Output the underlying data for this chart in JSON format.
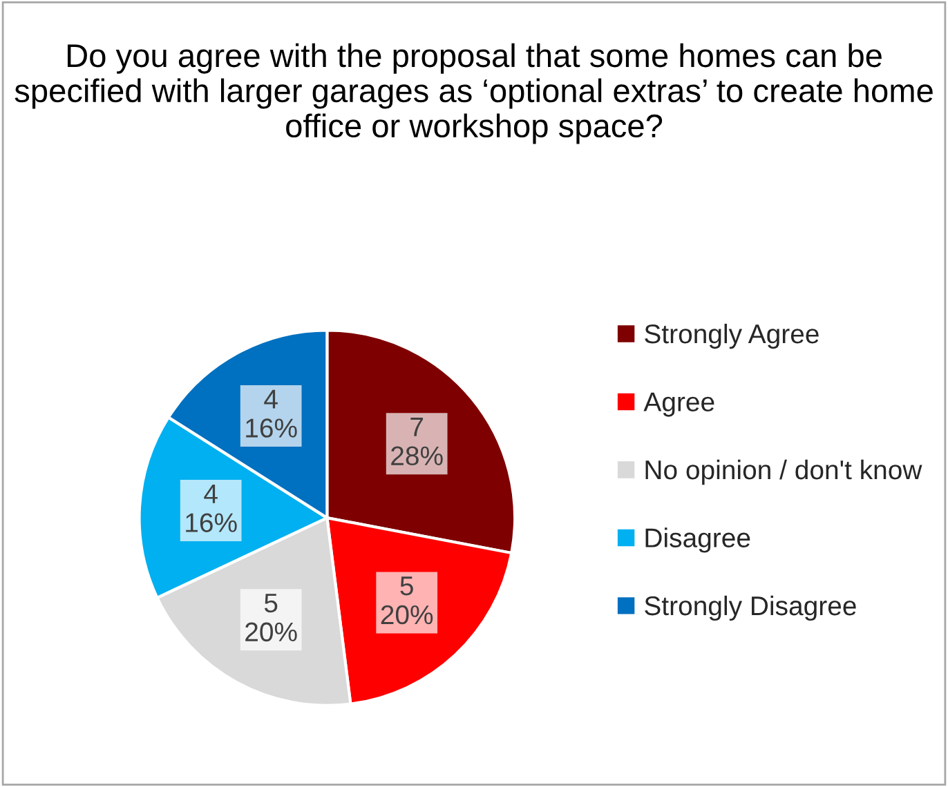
{
  "chart_data": {
    "type": "pie",
    "title": "Do you agree with the proposal that some homes can be specified with larger garages as ‘optional extras’ to create home office or workshop space?",
    "categories": [
      "Strongly Agree",
      "Agree",
      "No opinion / don't know",
      "Disagree",
      "Strongly Disagree"
    ],
    "values": [
      7,
      5,
      5,
      4,
      4
    ],
    "colors": [
      "#7f0000",
      "#ff0000",
      "#d9d9d9",
      "#00b0f0",
      "#0070c0"
    ],
    "value_labels": [
      "7\n28%",
      "5\n20%",
      "5\n20%",
      "4\n16%",
      "4\n16%"
    ],
    "legend": "right"
  }
}
